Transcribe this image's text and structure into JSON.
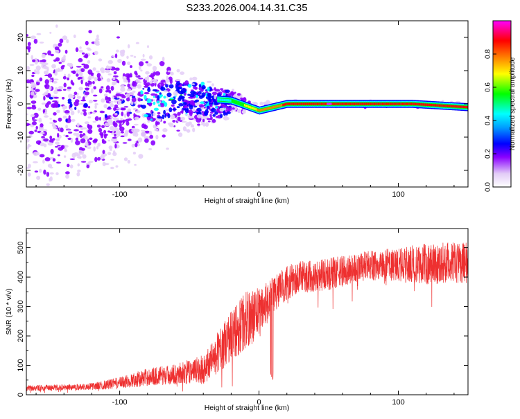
{
  "title": "S233.2026.004.14.31.C35",
  "chart_data": [
    {
      "type": "heatmap",
      "xlabel": "Height of straight line (km)",
      "ylabel": "Frequency (Hz)",
      "xlim": [
        -167,
        150
      ],
      "ylim": [
        -25,
        25
      ],
      "xticks": [
        -100,
        0,
        100
      ],
      "xtick_labels": [
        "-100",
        "0",
        "100"
      ],
      "yticks": [
        -20,
        -10,
        0,
        10,
        20
      ],
      "ytick_labels": [
        "-20",
        "-10",
        "0",
        "10",
        "20"
      ],
      "colorbar": {
        "label": "Normalized spectral amplitude",
        "range": [
          0,
          1
        ],
        "ticks": [
          0,
          0.2,
          0.4,
          0.6,
          0.8
        ],
        "tick_labels": [
          "0.0",
          "0.2",
          "0.4",
          "0.6",
          "0.8"
        ],
        "colormap": [
          "#ffffff",
          "#e4cff7",
          "#8a00ff",
          "#0000ff",
          "#00ffff",
          "#00ff00",
          "#ffff00",
          "#ff8000",
          "#ff0000",
          "#ff00ff"
        ]
      },
      "description_points": {
        "band_height_km": [
          -167,
          -120,
          -80,
          -50,
          -20,
          0,
          20,
          50,
          80,
          110,
          150
        ],
        "band_center_freq_hz": [
          0,
          0,
          0,
          2,
          1,
          -2,
          0,
          0,
          0,
          0,
          -1
        ],
        "band_peak_amplitude": [
          0.25,
          0.25,
          0.3,
          0.45,
          0.5,
          0.75,
          0.85,
          0.95,
          0.85,
          0.85,
          0.9
        ],
        "scatter_spread_hz": [
          25,
          25,
          18,
          10,
          5,
          1,
          1,
          1,
          1,
          1,
          1
        ]
      }
    },
    {
      "type": "line",
      "xlabel": "Height of straight line (km)",
      "ylabel": "SNR (10 * v/v)",
      "xlim": [
        -167,
        150
      ],
      "ylim": [
        0,
        565
      ],
      "xticks": [
        -100,
        0,
        100
      ],
      "xtick_labels": [
        "-100",
        "0",
        "100"
      ],
      "yticks": [
        0,
        100,
        200,
        300,
        400,
        500
      ],
      "ytick_labels": [
        "0",
        "100",
        "200",
        "300",
        "400",
        "500"
      ],
      "color": "#ee3030",
      "envelope": {
        "x": [
          -167,
          -140,
          -120,
          -100,
          -80,
          -60,
          -40,
          -20,
          -10,
          0,
          10,
          20,
          30,
          50,
          80,
          100,
          120,
          150
        ],
        "mean_snr": [
          22,
          25,
          28,
          40,
          60,
          70,
          85,
          200,
          250,
          280,
          340,
          380,
          400,
          410,
          440,
          440,
          445,
          450
        ],
        "noise_amplitude": [
          10,
          10,
          12,
          20,
          30,
          35,
          50,
          90,
          100,
          90,
          60,
          60,
          55,
          55,
          50,
          60,
          70,
          70
        ]
      }
    }
  ]
}
